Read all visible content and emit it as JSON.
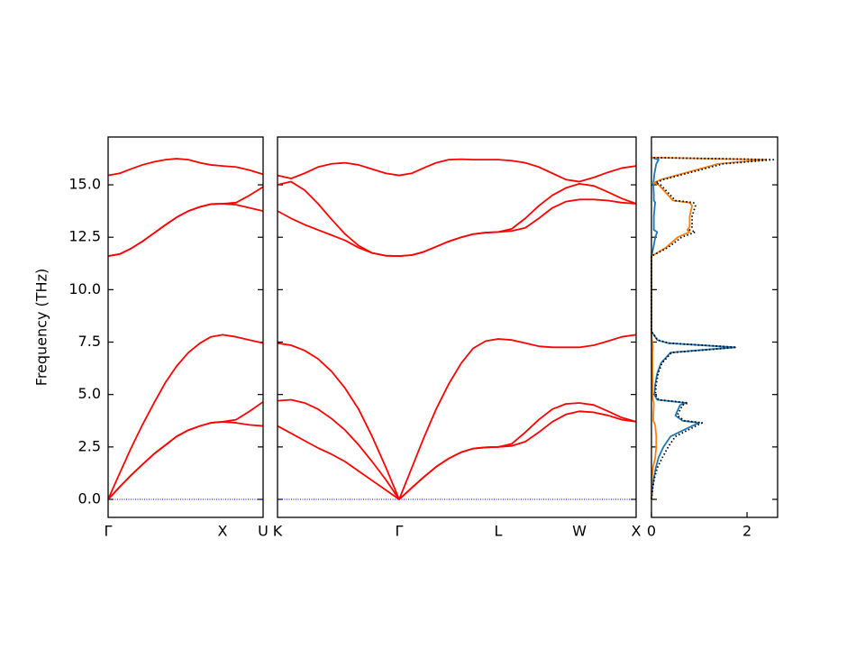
{
  "chart_data": [
    {
      "type": "line",
      "ylabel": "Frequency (THz)",
      "xlim": [
        0,
        1.72
      ],
      "ylim": [
        -0.86,
        17.28
      ],
      "xticks": [
        {
          "value": 0,
          "label": "Γ"
        },
        {
          "value": 1.27,
          "label": "X"
        },
        {
          "value": 1.72,
          "label": "U"
        }
      ],
      "yticks": [
        {
          "value": 0,
          "label": "0.0"
        },
        2.5,
        {
          "value": 5,
          "label": "5.0"
        },
        7.5,
        {
          "value": 10,
          "label": "10.0"
        },
        12.5,
        {
          "value": 15,
          "label": "15.0"
        }
      ],
      "hline": {
        "value": 0,
        "color": "#0000ff"
      },
      "x": [
        0,
        0.13,
        0.25,
        0.38,
        0.51,
        0.64,
        0.76,
        0.89,
        1.02,
        1.14,
        1.27,
        1.42,
        1.57,
        1.72
      ],
      "series": [
        {
          "color": "#ff0000",
          "values": [
            0,
            0.6,
            1.13,
            1.66,
            2.17,
            2.6,
            3.0,
            3.3,
            3.5,
            3.65,
            3.7,
            3.65,
            3.55,
            3.5
          ]
        },
        {
          "color": "#ff0000",
          "values": [
            0,
            0.6,
            1.13,
            1.66,
            2.17,
            2.6,
            3.0,
            3.3,
            3.5,
            3.65,
            3.7,
            3.8,
            4.2,
            4.65
          ]
        },
        {
          "color": "#ff0000",
          "values": [
            0,
            1.26,
            2.4,
            3.55,
            4.6,
            5.6,
            6.35,
            7.0,
            7.45,
            7.75,
            7.85,
            7.75,
            7.6,
            7.45
          ]
        },
        {
          "color": "#ff0000",
          "values": [
            11.6,
            11.7,
            11.95,
            12.3,
            12.7,
            13.1,
            13.45,
            13.75,
            13.95,
            14.08,
            14.1,
            14.05,
            13.9,
            13.75
          ]
        },
        {
          "color": "#ff0000",
          "values": [
            11.6,
            11.7,
            11.95,
            12.3,
            12.7,
            13.1,
            13.45,
            13.75,
            13.95,
            14.08,
            14.1,
            14.15,
            14.5,
            14.9
          ]
        },
        {
          "color": "#ff0000",
          "values": [
            15.45,
            15.55,
            15.75,
            15.95,
            16.1,
            16.2,
            16.25,
            16.2,
            16.05,
            15.95,
            15.9,
            15.85,
            15.7,
            15.5
          ]
        }
      ]
    },
    {
      "type": "line",
      "xlim": [
        0,
        3.98
      ],
      "xticks": [
        {
          "value": 0,
          "label": "K"
        },
        {
          "value": 1.35,
          "label": "Γ"
        },
        {
          "value": 2.45,
          "label": "L"
        },
        {
          "value": 3.35,
          "label": "W"
        },
        {
          "value": 3.98,
          "label": "X"
        }
      ],
      "hline": {
        "value": 0,
        "color": "#0000ff"
      },
      "x": [
        0,
        0.15,
        0.3,
        0.45,
        0.6,
        0.75,
        0.9,
        1.05,
        1.2,
        1.35,
        1.49,
        1.62,
        1.76,
        1.9,
        2.04,
        2.17,
        2.31,
        2.45,
        2.6,
        2.75,
        2.9,
        3.05,
        3.2,
        3.35,
        3.51,
        3.67,
        3.82,
        3.98
      ],
      "series": [
        {
          "color": "#ff0000",
          "values": [
            3.5,
            3.15,
            2.8,
            2.45,
            2.15,
            1.8,
            1.35,
            0.9,
            0.45,
            0,
            0.55,
            1.05,
            1.55,
            1.95,
            2.25,
            2.42,
            2.48,
            2.5,
            2.55,
            2.75,
            3.2,
            3.7,
            4.05,
            4.2,
            4.15,
            4.0,
            3.8,
            3.7
          ]
        },
        {
          "color": "#ff0000",
          "values": [
            4.7,
            4.75,
            4.6,
            4.3,
            3.85,
            3.3,
            2.6,
            1.8,
            0.95,
            0,
            0.55,
            1.05,
            1.55,
            1.95,
            2.25,
            2.42,
            2.48,
            2.5,
            2.65,
            3.2,
            3.8,
            4.3,
            4.55,
            4.6,
            4.5,
            4.2,
            3.9,
            3.7
          ]
        },
        {
          "color": "#ff0000",
          "values": [
            7.45,
            7.35,
            7.1,
            6.7,
            6.1,
            5.3,
            4.3,
            3.0,
            1.55,
            0,
            1.5,
            2.9,
            4.3,
            5.5,
            6.5,
            7.2,
            7.55,
            7.65,
            7.6,
            7.45,
            7.3,
            7.25,
            7.25,
            7.25,
            7.35,
            7.55,
            7.75,
            7.85
          ]
        },
        {
          "color": "#ff0000",
          "values": [
            13.75,
            13.4,
            13.1,
            12.85,
            12.6,
            12.35,
            12.0,
            11.75,
            11.62,
            11.6,
            11.65,
            11.8,
            12.05,
            12.3,
            12.5,
            12.65,
            12.72,
            12.75,
            12.8,
            12.95,
            13.4,
            13.9,
            14.2,
            14.3,
            14.3,
            14.25,
            14.15,
            14.1
          ]
        },
        {
          "color": "#ff0000",
          "values": [
            15.0,
            15.15,
            14.75,
            14.1,
            13.35,
            12.65,
            12.1,
            11.75,
            11.62,
            11.6,
            11.65,
            11.8,
            12.05,
            12.3,
            12.5,
            12.65,
            12.72,
            12.75,
            12.9,
            13.4,
            14.0,
            14.5,
            14.85,
            15.05,
            14.95,
            14.65,
            14.35,
            14.1
          ]
        },
        {
          "color": "#ff0000",
          "values": [
            15.45,
            15.3,
            15.55,
            15.85,
            16.0,
            16.05,
            15.95,
            15.75,
            15.55,
            15.45,
            15.55,
            15.8,
            16.05,
            16.2,
            16.22,
            16.2,
            16.2,
            16.2,
            16.15,
            16.05,
            15.85,
            15.55,
            15.25,
            15.15,
            15.35,
            15.6,
            15.8,
            15.9
          ]
        }
      ]
    },
    {
      "type": "line",
      "xlim": [
        0,
        2.64
      ],
      "xticks": [
        0,
        2
      ],
      "y": [
        0,
        0.5,
        1,
        1.5,
        2,
        2.5,
        3,
        3.5,
        3.65,
        3.75,
        4,
        4.5,
        4.6,
        4.75,
        5,
        5.5,
        6,
        6.5,
        7,
        7.25,
        7.45,
        7.6,
        7.85,
        8,
        11.5,
        11.6,
        11.8,
        12,
        12.5,
        12.75,
        12.85,
        13,
        13.5,
        14,
        14.15,
        14.25,
        14.5,
        15,
        15.1,
        15.25,
        15.5,
        16,
        16.2,
        16.3
      ],
      "series": [
        {
          "color": "#1f77b4",
          "style": "solid",
          "values": [
            0,
            0.02,
            0.05,
            0.09,
            0.15,
            0.25,
            0.4,
            0.85,
            1.0,
            0.65,
            0.5,
            0.6,
            0.72,
            0.12,
            0.06,
            0.08,
            0.12,
            0.2,
            0.4,
            1.75,
            0.35,
            0.12,
            0.05,
            0,
            0,
            0,
            0.02,
            0.04,
            0.08,
            0.12,
            0.05,
            0.05,
            0.05,
            0.07,
            0.08,
            0.05,
            0.05,
            0.04,
            0.04,
            0.05,
            0.06,
            0.1,
            0.15,
            0
          ]
        },
        {
          "color": "#ff7f0e",
          "style": "solid",
          "values": [
            0,
            0.005,
            0.01,
            0.03,
            0.08,
            0.1,
            0.1,
            0.08,
            0.06,
            0.04,
            0.04,
            0.05,
            0.05,
            0.03,
            0.02,
            0.02,
            0.02,
            0.02,
            0.02,
            0.03,
            0.02,
            0.01,
            0,
            0,
            0,
            0,
            0.15,
            0.3,
            0.55,
            0.8,
            0.75,
            0.8,
            0.8,
            0.85,
            0.8,
            0.45,
            0.35,
            0.15,
            0.05,
            0.2,
            0.6,
            1.4,
            2.4,
            0
          ]
        },
        {
          "color": "#000000",
          "style": "dotted",
          "values": [
            0,
            0.025,
            0.06,
            0.12,
            0.23,
            0.35,
            0.5,
            0.93,
            1.06,
            0.69,
            0.54,
            0.65,
            0.77,
            0.15,
            0.08,
            0.1,
            0.14,
            0.22,
            0.42,
            1.78,
            0.37,
            0.13,
            0.05,
            0,
            0,
            0,
            0.17,
            0.34,
            0.63,
            0.92,
            0.8,
            0.85,
            0.85,
            0.92,
            0.88,
            0.5,
            0.4,
            0.19,
            0.09,
            0.25,
            0.66,
            1.5,
            2.55,
            0
          ]
        }
      ]
    }
  ]
}
